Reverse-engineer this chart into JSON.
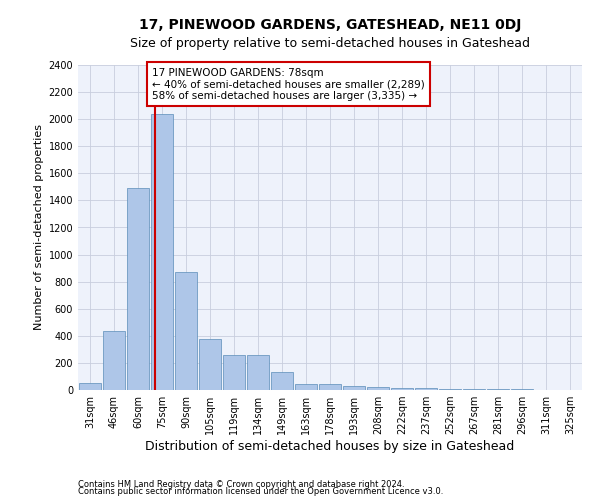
{
  "title": "17, PINEWOOD GARDENS, GATESHEAD, NE11 0DJ",
  "subtitle": "Size of property relative to semi-detached houses in Gateshead",
  "xlabel": "Distribution of semi-detached houses by size in Gateshead",
  "ylabel": "Number of semi-detached properties",
  "categories": [
    "31sqm",
    "46sqm",
    "60sqm",
    "75sqm",
    "90sqm",
    "105sqm",
    "119sqm",
    "134sqm",
    "149sqm",
    "163sqm",
    "178sqm",
    "193sqm",
    "208sqm",
    "222sqm",
    "237sqm",
    "252sqm",
    "267sqm",
    "281sqm",
    "296sqm",
    "311sqm",
    "325sqm"
  ],
  "values": [
    50,
    435,
    1490,
    2040,
    875,
    375,
    260,
    260,
    135,
    45,
    45,
    30,
    22,
    18,
    15,
    10,
    8,
    5,
    4,
    3,
    2
  ],
  "bar_color": "#aec6e8",
  "bar_edgecolor": "#5b8db8",
  "vline_color": "#cc0000",
  "annotation_line1": "17 PINEWOOD GARDENS: 78sqm",
  "annotation_line2": "← 40% of semi-detached houses are smaller (2,289)",
  "annotation_line3": "58% of semi-detached houses are larger (3,335) →",
  "annotation_box_color": "#ffffff",
  "annotation_box_edgecolor": "#cc0000",
  "ylim": [
    0,
    2400
  ],
  "yticks": [
    0,
    200,
    400,
    600,
    800,
    1000,
    1200,
    1400,
    1600,
    1800,
    2000,
    2200,
    2400
  ],
  "footnote1": "Contains HM Land Registry data © Crown copyright and database right 2024.",
  "footnote2": "Contains public sector information licensed under the Open Government Licence v3.0.",
  "bg_color": "#eef2fb",
  "grid_color": "#c8cede",
  "title_fontsize": 10,
  "subtitle_fontsize": 9,
  "annotation_fontsize": 7.5,
  "ylabel_fontsize": 8,
  "xlabel_fontsize": 9,
  "tick_fontsize": 7,
  "footnote_fontsize": 6
}
